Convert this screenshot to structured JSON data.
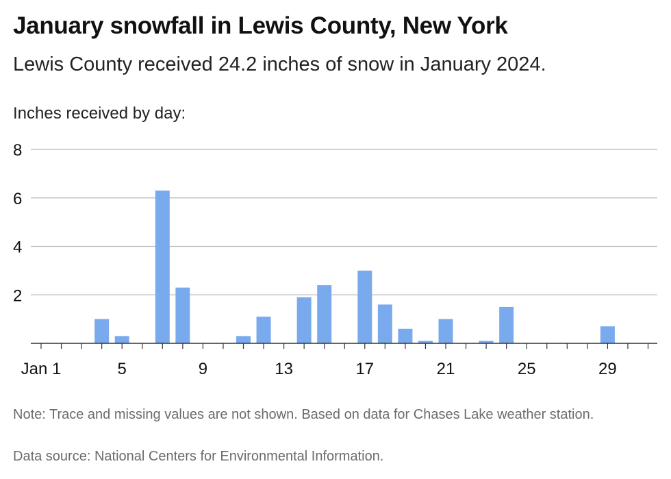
{
  "header": {
    "title": "January snowfall in Lewis County, New York",
    "subtitle": "Lewis County received 24.2 inches of snow in January 2024."
  },
  "footer": {
    "note": "Note: Trace and missing values are not shown. Based on data for Chases Lake weather station.",
    "source": "Data source: National Centers for Environmental Information."
  },
  "colors": {
    "bar": "#7aaaee",
    "grid": "#b8b8b8",
    "axis": "#333333"
  },
  "chart_data": {
    "type": "bar",
    "ylabel": "Inches received by day:",
    "ylim": [
      0,
      8
    ],
    "yticks": [
      "2",
      "4",
      "6",
      "8"
    ],
    "xticks": [
      "Jan 1",
      "5",
      "9",
      "13",
      "17",
      "21",
      "25",
      "29"
    ],
    "x": [
      4,
      5,
      7,
      8,
      11,
      12,
      14,
      15,
      17,
      18,
      19,
      20,
      21,
      23,
      24,
      29
    ],
    "values": [
      1.0,
      0.3,
      6.3,
      2.3,
      0.3,
      1.1,
      1.9,
      2.4,
      3.0,
      1.6,
      0.6,
      0.1,
      1.0,
      0.1,
      1.5,
      0.7
    ],
    "grid": true
  }
}
